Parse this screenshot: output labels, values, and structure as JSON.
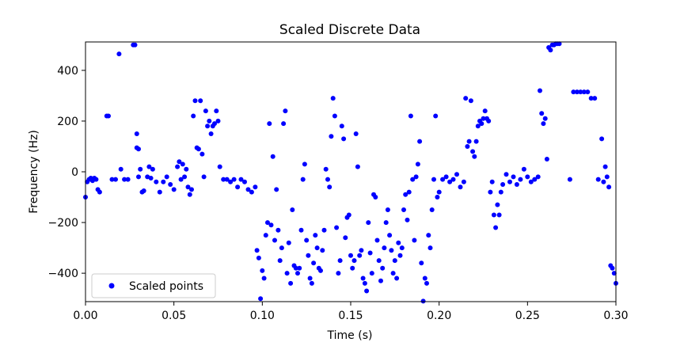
{
  "chart_data": {
    "type": "scatter",
    "title": "Scaled Discrete Data",
    "xlabel": "Time (s)",
    "ylabel": "Frequency (Hz)",
    "xlim": [
      0.0,
      0.3
    ],
    "ylim": [
      -512,
      512
    ],
    "xticks": [
      0.0,
      0.05,
      0.1,
      0.15,
      0.2,
      0.25,
      0.3
    ],
    "xtick_labels": [
      "0.00",
      "0.05",
      "0.10",
      "0.15",
      "0.20",
      "0.25",
      "0.30"
    ],
    "yticks": [
      -400,
      -200,
      0,
      200,
      400
    ],
    "ytick_labels": [
      "−400",
      "−200",
      "0",
      "200",
      "400"
    ],
    "grid": false,
    "legend_position": "lower-left",
    "series": [
      {
        "name": "Scaled points",
        "color": "#0000ff",
        "points": [
          [
            0.0,
            -100
          ],
          [
            0.001,
            -40
          ],
          [
            0.002,
            -30
          ],
          [
            0.003,
            -25
          ],
          [
            0.004,
            -35
          ],
          [
            0.005,
            -25
          ],
          [
            0.006,
            -30
          ],
          [
            0.007,
            -70
          ],
          [
            0.008,
            -80
          ],
          [
            0.012,
            220
          ],
          [
            0.013,
            220
          ],
          [
            0.015,
            -30
          ],
          [
            0.017,
            -30
          ],
          [
            0.019,
            465
          ],
          [
            0.02,
            10
          ],
          [
            0.022,
            -30
          ],
          [
            0.024,
            -30
          ],
          [
            0.027,
            500
          ],
          [
            0.028,
            500
          ],
          [
            0.029,
            150
          ],
          [
            0.029,
            95
          ],
          [
            0.03,
            90
          ],
          [
            0.03,
            -20
          ],
          [
            0.031,
            10
          ],
          [
            0.032,
            -80
          ],
          [
            0.033,
            -75
          ],
          [
            0.035,
            -20
          ],
          [
            0.036,
            20
          ],
          [
            0.037,
            -25
          ],
          [
            0.038,
            10
          ],
          [
            0.04,
            -40
          ],
          [
            0.042,
            -80
          ],
          [
            0.044,
            -40
          ],
          [
            0.046,
            -20
          ],
          [
            0.048,
            -50
          ],
          [
            0.05,
            -70
          ],
          [
            0.052,
            20
          ],
          [
            0.053,
            40
          ],
          [
            0.054,
            -30
          ],
          [
            0.055,
            30
          ],
          [
            0.056,
            -20
          ],
          [
            0.057,
            10
          ],
          [
            0.058,
            -60
          ],
          [
            0.059,
            -90
          ],
          [
            0.06,
            -70
          ],
          [
            0.061,
            220
          ],
          [
            0.062,
            280
          ],
          [
            0.063,
            95
          ],
          [
            0.064,
            90
          ],
          [
            0.065,
            280
          ],
          [
            0.066,
            70
          ],
          [
            0.067,
            -20
          ],
          [
            0.068,
            240
          ],
          [
            0.069,
            180
          ],
          [
            0.07,
            200
          ],
          [
            0.071,
            150
          ],
          [
            0.072,
            180
          ],
          [
            0.073,
            190
          ],
          [
            0.074,
            240
          ],
          [
            0.075,
            200
          ],
          [
            0.076,
            20
          ],
          [
            0.078,
            -30
          ],
          [
            0.08,
            -30
          ],
          [
            0.082,
            -40
          ],
          [
            0.084,
            -30
          ],
          [
            0.086,
            -60
          ],
          [
            0.088,
            -30
          ],
          [
            0.09,
            -40
          ],
          [
            0.092,
            -70
          ],
          [
            0.094,
            -80
          ],
          [
            0.096,
            -60
          ],
          [
            0.097,
            -310
          ],
          [
            0.098,
            -340
          ],
          [
            0.099,
            -500
          ],
          [
            0.1,
            -390
          ],
          [
            0.101,
            -420
          ],
          [
            0.102,
            -250
          ],
          [
            0.103,
            -200
          ],
          [
            0.104,
            190
          ],
          [
            0.105,
            -210
          ],
          [
            0.106,
            60
          ],
          [
            0.107,
            -270
          ],
          [
            0.108,
            -70
          ],
          [
            0.109,
            -230
          ],
          [
            0.11,
            -350
          ],
          [
            0.111,
            -300
          ],
          [
            0.112,
            190
          ],
          [
            0.113,
            240
          ],
          [
            0.114,
            -400
          ],
          [
            0.115,
            -280
          ],
          [
            0.116,
            -440
          ],
          [
            0.117,
            -150
          ],
          [
            0.118,
            -370
          ],
          [
            0.119,
            -380
          ],
          [
            0.12,
            -400
          ],
          [
            0.121,
            -380
          ],
          [
            0.122,
            -230
          ],
          [
            0.123,
            -30
          ],
          [
            0.124,
            30
          ],
          [
            0.125,
            -270
          ],
          [
            0.126,
            -330
          ],
          [
            0.127,
            -420
          ],
          [
            0.128,
            -440
          ],
          [
            0.129,
            -360
          ],
          [
            0.13,
            -250
          ],
          [
            0.131,
            -300
          ],
          [
            0.132,
            -380
          ],
          [
            0.133,
            -390
          ],
          [
            0.134,
            -310
          ],
          [
            0.135,
            -230
          ],
          [
            0.136,
            10
          ],
          [
            0.137,
            -30
          ],
          [
            0.138,
            -60
          ],
          [
            0.139,
            140
          ],
          [
            0.14,
            290
          ],
          [
            0.141,
            220
          ],
          [
            0.142,
            -220
          ],
          [
            0.143,
            -400
          ],
          [
            0.144,
            -350
          ],
          [
            0.145,
            180
          ],
          [
            0.146,
            130
          ],
          [
            0.147,
            -260
          ],
          [
            0.148,
            -180
          ],
          [
            0.149,
            -170
          ],
          [
            0.15,
            -330
          ],
          [
            0.151,
            -380
          ],
          [
            0.152,
            -350
          ],
          [
            0.153,
            150
          ],
          [
            0.154,
            20
          ],
          [
            0.155,
            -330
          ],
          [
            0.156,
            -310
          ],
          [
            0.157,
            -420
          ],
          [
            0.158,
            -440
          ],
          [
            0.159,
            -470
          ],
          [
            0.16,
            -200
          ],
          [
            0.161,
            -320
          ],
          [
            0.162,
            -400
          ],
          [
            0.163,
            -90
          ],
          [
            0.164,
            -100
          ],
          [
            0.165,
            -270
          ],
          [
            0.166,
            -350
          ],
          [
            0.167,
            -430
          ],
          [
            0.168,
            -380
          ],
          [
            0.169,
            -300
          ],
          [
            0.17,
            -200
          ],
          [
            0.171,
            -150
          ],
          [
            0.172,
            -250
          ],
          [
            0.173,
            -310
          ],
          [
            0.174,
            -400
          ],
          [
            0.175,
            -350
          ],
          [
            0.176,
            -420
          ],
          [
            0.177,
            -280
          ],
          [
            0.178,
            -330
          ],
          [
            0.179,
            -300
          ],
          [
            0.18,
            -150
          ],
          [
            0.181,
            -90
          ],
          [
            0.182,
            -190
          ],
          [
            0.183,
            -80
          ],
          [
            0.184,
            220
          ],
          [
            0.185,
            -30
          ],
          [
            0.186,
            -270
          ],
          [
            0.187,
            -20
          ],
          [
            0.188,
            30
          ],
          [
            0.189,
            120
          ],
          [
            0.19,
            -360
          ],
          [
            0.191,
            -510
          ],
          [
            0.192,
            -420
          ],
          [
            0.193,
            -440
          ],
          [
            0.194,
            -250
          ],
          [
            0.195,
            -300
          ],
          [
            0.196,
            -150
          ],
          [
            0.197,
            -30
          ],
          [
            0.198,
            220
          ],
          [
            0.199,
            -100
          ],
          [
            0.2,
            -80
          ],
          [
            0.202,
            -30
          ],
          [
            0.204,
            -20
          ],
          [
            0.206,
            -40
          ],
          [
            0.208,
            -30
          ],
          [
            0.21,
            -10
          ],
          [
            0.212,
            -60
          ],
          [
            0.214,
            -40
          ],
          [
            0.215,
            290
          ],
          [
            0.216,
            100
          ],
          [
            0.217,
            120
          ],
          [
            0.218,
            280
          ],
          [
            0.219,
            80
          ],
          [
            0.22,
            60
          ],
          [
            0.221,
            120
          ],
          [
            0.222,
            180
          ],
          [
            0.223,
            200
          ],
          [
            0.224,
            190
          ],
          [
            0.225,
            210
          ],
          [
            0.226,
            240
          ],
          [
            0.227,
            210
          ],
          [
            0.228,
            200
          ],
          [
            0.229,
            -80
          ],
          [
            0.23,
            -40
          ],
          [
            0.231,
            -170
          ],
          [
            0.232,
            -220
          ],
          [
            0.233,
            -130
          ],
          [
            0.234,
            -170
          ],
          [
            0.235,
            -80
          ],
          [
            0.236,
            -50
          ],
          [
            0.238,
            -10
          ],
          [
            0.24,
            -40
          ],
          [
            0.242,
            -20
          ],
          [
            0.244,
            -50
          ],
          [
            0.246,
            -30
          ],
          [
            0.248,
            10
          ],
          [
            0.25,
            -20
          ],
          [
            0.252,
            -40
          ],
          [
            0.254,
            -30
          ],
          [
            0.256,
            -20
          ],
          [
            0.257,
            320
          ],
          [
            0.258,
            230
          ],
          [
            0.259,
            190
          ],
          [
            0.26,
            210
          ],
          [
            0.261,
            50
          ],
          [
            0.262,
            490
          ],
          [
            0.263,
            480
          ],
          [
            0.264,
            500
          ],
          [
            0.265,
            500
          ],
          [
            0.266,
            505
          ],
          [
            0.267,
            505
          ],
          [
            0.268,
            505
          ],
          [
            0.274,
            -30
          ],
          [
            0.276,
            315
          ],
          [
            0.278,
            315
          ],
          [
            0.28,
            315
          ],
          [
            0.282,
            315
          ],
          [
            0.284,
            315
          ],
          [
            0.286,
            290
          ],
          [
            0.288,
            290
          ],
          [
            0.29,
            -30
          ],
          [
            0.292,
            130
          ],
          [
            0.293,
            -40
          ],
          [
            0.294,
            20
          ],
          [
            0.295,
            -20
          ],
          [
            0.296,
            -60
          ],
          [
            0.297,
            -370
          ],
          [
            0.298,
            -380
          ],
          [
            0.299,
            -400
          ],
          [
            0.3,
            -440
          ]
        ]
      }
    ]
  }
}
